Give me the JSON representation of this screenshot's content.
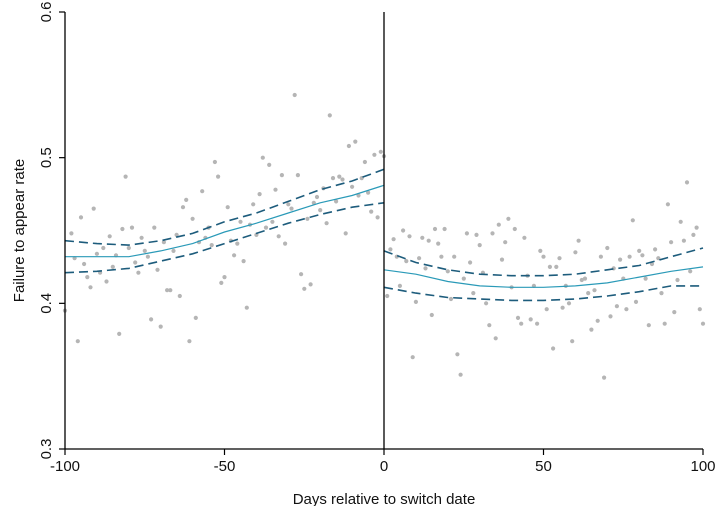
{
  "chart_data": {
    "type": "scatter",
    "title": "",
    "xlabel": "Days relative to switch date",
    "ylabel": "Failure to appear rate",
    "xlim": [
      -100,
      100
    ],
    "ylim": [
      0.3,
      0.6
    ],
    "xticks": [
      -100,
      -50,
      0,
      50,
      100
    ],
    "xtick_labels": [
      "-100",
      "-50",
      "0",
      "50",
      "100"
    ],
    "yticks": [
      0.3,
      0.4,
      0.5,
      0.6
    ],
    "ytick_labels": [
      "0.3",
      "0.4",
      "0.5",
      "0.6"
    ],
    "cutoff": 0,
    "grid": false,
    "legend": "none",
    "colors": {
      "points": "#b5b5b5",
      "fit": "#2a9ab8",
      "ci": "#1d5c7c",
      "axis": "#000000"
    },
    "points": [
      [
        -100,
        0.395
      ],
      [
        -98,
        0.448
      ],
      [
        -97,
        0.431
      ],
      [
        -96,
        0.374
      ],
      [
        -95,
        0.459
      ],
      [
        -94,
        0.427
      ],
      [
        -93,
        0.418
      ],
      [
        -92,
        0.411
      ],
      [
        -91,
        0.465
      ],
      [
        -90,
        0.434
      ],
      [
        -89,
        0.421
      ],
      [
        -88,
        0.438
      ],
      [
        -87,
        0.415
      ],
      [
        -86,
        0.446
      ],
      [
        -85,
        0.425
      ],
      [
        -84,
        0.433
      ],
      [
        -83,
        0.379
      ],
      [
        -82,
        0.451
      ],
      [
        -81,
        0.487
      ],
      [
        -80,
        0.438
      ],
      [
        -79,
        0.452
      ],
      [
        -78,
        0.428
      ],
      [
        -77,
        0.421
      ],
      [
        -76,
        0.445
      ],
      [
        -75,
        0.436
      ],
      [
        -74,
        0.432
      ],
      [
        -73,
        0.389
      ],
      [
        -72,
        0.452
      ],
      [
        -71,
        0.423
      ],
      [
        -70,
        0.384
      ],
      [
        -69,
        0.442
      ],
      [
        -68,
        0.409
      ],
      [
        -67,
        0.409
      ],
      [
        -66,
        0.436
      ],
      [
        -65,
        0.447
      ],
      [
        -64,
        0.405
      ],
      [
        -63,
        0.466
      ],
      [
        -62,
        0.471
      ],
      [
        -61,
        0.374
      ],
      [
        -60,
        0.458
      ],
      [
        -59,
        0.39
      ],
      [
        -58,
        0.442
      ],
      [
        -57,
        0.477
      ],
      [
        -56,
        0.445
      ],
      [
        -55,
        0.452
      ],
      [
        -54,
        0.44
      ],
      [
        -53,
        0.497
      ],
      [
        -52,
        0.487
      ],
      [
        -51,
        0.414
      ],
      [
        -50,
        0.418
      ],
      [
        -49,
        0.466
      ],
      [
        -48,
        0.443
      ],
      [
        -47,
        0.433
      ],
      [
        -46,
        0.441
      ],
      [
        -45,
        0.456
      ],
      [
        -44,
        0.429
      ],
      [
        -43,
        0.397
      ],
      [
        -42,
        0.454
      ],
      [
        -41,
        0.468
      ],
      [
        -40,
        0.447
      ],
      [
        -39,
        0.475
      ],
      [
        -38,
        0.5
      ],
      [
        -37,
        0.452
      ],
      [
        -36,
        0.495
      ],
      [
        -35,
        0.456
      ],
      [
        -34,
        0.478
      ],
      [
        -33,
        0.446
      ],
      [
        -32,
        0.488
      ],
      [
        -31,
        0.441
      ],
      [
        -30,
        0.468
      ],
      [
        -29,
        0.465
      ],
      [
        -28,
        0.543
      ],
      [
        -27,
        0.488
      ],
      [
        -26,
        0.42
      ],
      [
        -25,
        0.41
      ],
      [
        -24,
        0.458
      ],
      [
        -23,
        0.413
      ],
      [
        -22,
        0.469
      ],
      [
        -21,
        0.473
      ],
      [
        -20,
        0.464
      ],
      [
        -19,
        0.479
      ],
      [
        -18,
        0.455
      ],
      [
        -17,
        0.529
      ],
      [
        -16,
        0.486
      ],
      [
        -15,
        0.47
      ],
      [
        -14,
        0.487
      ],
      [
        -13,
        0.485
      ],
      [
        -12,
        0.448
      ],
      [
        -11,
        0.508
      ],
      [
        -10,
        0.48
      ],
      [
        -9,
        0.511
      ],
      [
        -8,
        0.474
      ],
      [
        -7,
        0.486
      ],
      [
        -6,
        0.497
      ],
      [
        -5,
        0.476
      ],
      [
        -4,
        0.463
      ],
      [
        -3,
        0.502
      ],
      [
        -2,
        0.459
      ],
      [
        -1,
        0.504
      ],
      [
        0,
        0.501
      ],
      [
        1,
        0.405
      ],
      [
        2,
        0.437
      ],
      [
        3,
        0.444
      ],
      [
        4,
        0.432
      ],
      [
        5,
        0.412
      ],
      [
        6,
        0.45
      ],
      [
        7,
        0.429
      ],
      [
        8,
        0.446
      ],
      [
        9,
        0.363
      ],
      [
        10,
        0.401
      ],
      [
        11,
        0.431
      ],
      [
        12,
        0.445
      ],
      [
        13,
        0.424
      ],
      [
        14,
        0.443
      ],
      [
        15,
        0.392
      ],
      [
        16,
        0.451
      ],
      [
        17,
        0.441
      ],
      [
        18,
        0.432
      ],
      [
        19,
        0.451
      ],
      [
        20,
        0.422
      ],
      [
        21,
        0.403
      ],
      [
        22,
        0.432
      ],
      [
        23,
        0.365
      ],
      [
        24,
        0.351
      ],
      [
        25,
        0.417
      ],
      [
        26,
        0.448
      ],
      [
        27,
        0.428
      ],
      [
        28,
        0.407
      ],
      [
        29,
        0.447
      ],
      [
        30,
        0.44
      ],
      [
        31,
        0.421
      ],
      [
        32,
        0.4
      ],
      [
        33,
        0.385
      ],
      [
        34,
        0.448
      ],
      [
        35,
        0.376
      ],
      [
        36,
        0.454
      ],
      [
        37,
        0.43
      ],
      [
        38,
        0.442
      ],
      [
        39,
        0.458
      ],
      [
        40,
        0.411
      ],
      [
        41,
        0.451
      ],
      [
        42,
        0.39
      ],
      [
        43,
        0.386
      ],
      [
        44,
        0.445
      ],
      [
        45,
        0.419
      ],
      [
        46,
        0.389
      ],
      [
        47,
        0.412
      ],
      [
        48,
        0.386
      ],
      [
        49,
        0.436
      ],
      [
        50,
        0.432
      ],
      [
        51,
        0.396
      ],
      [
        52,
        0.425
      ],
      [
        53,
        0.369
      ],
      [
        54,
        0.425
      ],
      [
        55,
        0.431
      ],
      [
        56,
        0.397
      ],
      [
        57,
        0.412
      ],
      [
        58,
        0.4
      ],
      [
        59,
        0.374
      ],
      [
        60,
        0.435
      ],
      [
        61,
        0.443
      ],
      [
        62,
        0.416
      ],
      [
        63,
        0.417
      ],
      [
        64,
        0.407
      ],
      [
        65,
        0.382
      ],
      [
        66,
        0.409
      ],
      [
        67,
        0.388
      ],
      [
        68,
        0.432
      ],
      [
        69,
        0.349
      ],
      [
        70,
        0.438
      ],
      [
        71,
        0.391
      ],
      [
        72,
        0.424
      ],
      [
        73,
        0.398
      ],
      [
        74,
        0.43
      ],
      [
        75,
        0.417
      ],
      [
        76,
        0.396
      ],
      [
        77,
        0.432
      ],
      [
        78,
        0.457
      ],
      [
        79,
        0.401
      ],
      [
        80,
        0.436
      ],
      [
        81,
        0.433
      ],
      [
        82,
        0.417
      ],
      [
        83,
        0.385
      ],
      [
        84,
        0.427
      ],
      [
        85,
        0.437
      ],
      [
        86,
        0.431
      ],
      [
        87,
        0.407
      ],
      [
        88,
        0.386
      ],
      [
        89,
        0.468
      ],
      [
        90,
        0.442
      ],
      [
        91,
        0.394
      ],
      [
        92,
        0.416
      ],
      [
        93,
        0.456
      ],
      [
        94,
        0.443
      ],
      [
        95,
        0.483
      ],
      [
        96,
        0.422
      ],
      [
        97,
        0.447
      ],
      [
        98,
        0.452
      ],
      [
        99,
        0.396
      ],
      [
        100,
        0.386
      ]
    ],
    "series": [
      {
        "role": "fit",
        "segments": [
          {
            "x": [
              -100,
              -90,
              -80,
              -70,
              -60,
              -50,
              -40,
              -30,
              -20,
              -10,
              0
            ],
            "y": [
              0.432,
              0.432,
              0.432,
              0.436,
              0.441,
              0.449,
              0.455,
              0.462,
              0.469,
              0.474,
              0.481
            ]
          },
          {
            "x": [
              0,
              10,
              20,
              30,
              40,
              50,
              60,
              70,
              80,
              90,
              100
            ],
            "y": [
              0.423,
              0.42,
              0.415,
              0.412,
              0.411,
              0.411,
              0.412,
              0.414,
              0.418,
              0.422,
              0.425
            ]
          }
        ]
      },
      {
        "role": "ci-upper",
        "segments": [
          {
            "x": [
              -100,
              -90,
              -80,
              -70,
              -60,
              -50,
              -40,
              -30,
              -20,
              -10,
              0
            ],
            "y": [
              0.443,
              0.441,
              0.44,
              0.443,
              0.448,
              0.456,
              0.462,
              0.47,
              0.478,
              0.484,
              0.492
            ]
          },
          {
            "x": [
              0,
              10,
              20,
              30,
              40,
              50,
              60,
              70,
              80,
              90,
              100
            ],
            "y": [
              0.436,
              0.428,
              0.423,
              0.42,
              0.419,
              0.419,
              0.42,
              0.423,
              0.426,
              0.432,
              0.438
            ]
          }
        ]
      },
      {
        "role": "ci-lower",
        "segments": [
          {
            "x": [
              -100,
              -90,
              -80,
              -70,
              -60,
              -50,
              -40,
              -30,
              -20,
              -10,
              0
            ],
            "y": [
              0.421,
              0.422,
              0.424,
              0.429,
              0.434,
              0.441,
              0.448,
              0.455,
              0.461,
              0.466,
              0.469
            ]
          },
          {
            "x": [
              0,
              10,
              20,
              30,
              40,
              50,
              60,
              70,
              80,
              90,
              100
            ],
            "y": [
              0.411,
              0.407,
              0.404,
              0.403,
              0.402,
              0.402,
              0.403,
              0.405,
              0.408,
              0.412,
              0.412
            ]
          }
        ]
      }
    ]
  }
}
